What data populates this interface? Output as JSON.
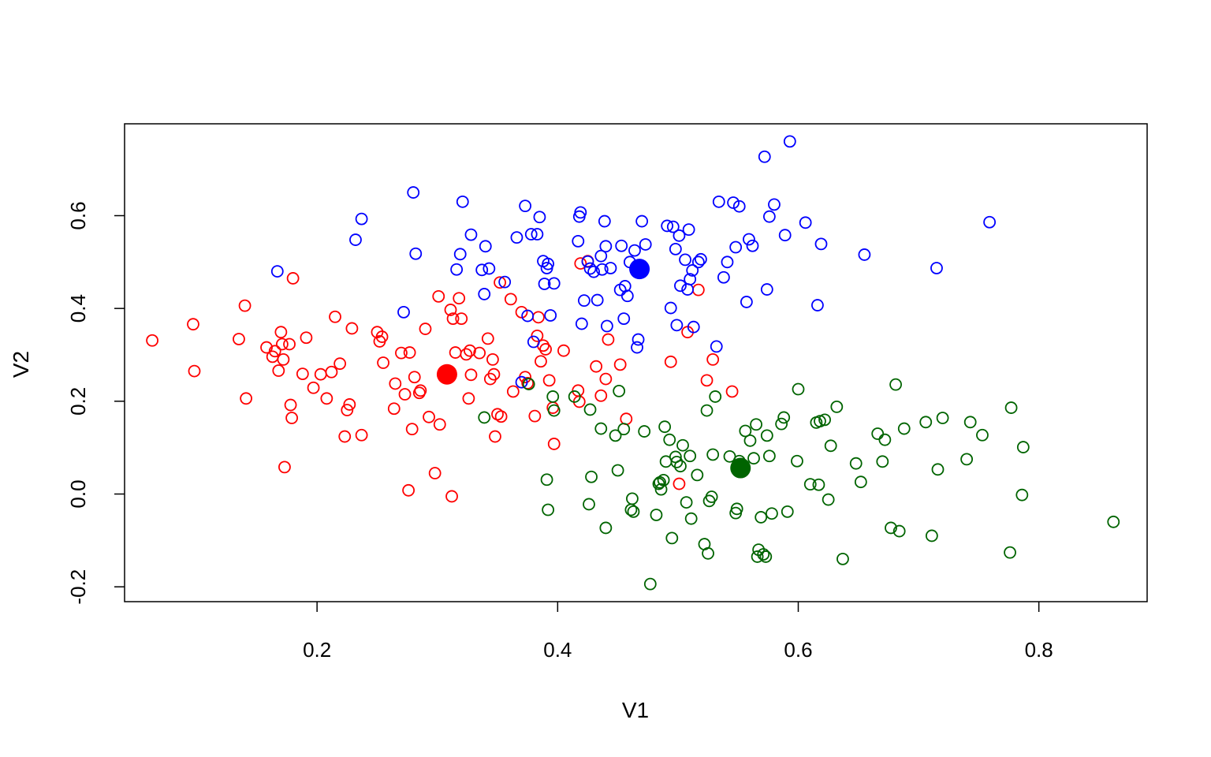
{
  "chart_data": {
    "type": "scatter",
    "title": "",
    "xlabel": "V1",
    "ylabel": "V2",
    "xlim": [
      0.04,
      0.89
    ],
    "ylim": [
      -0.232,
      0.798
    ],
    "x_ticks": [
      0.2,
      0.4,
      0.6,
      0.8
    ],
    "x_tick_labels": [
      "0.2",
      "0.4",
      "0.6",
      "0.8"
    ],
    "y_ticks": [
      -0.2,
      0.0,
      0.2,
      0.4,
      0.6
    ],
    "y_tick_labels": [
      "-0.2",
      "0.0",
      "0.2",
      "0.4",
      "0.6"
    ],
    "grid": false,
    "legend": "none",
    "series": [
      {
        "color": "#ff0000",
        "centroid": [
          0.308,
          0.258
        ],
        "x": [
          0.063,
          0.097,
          0.098,
          0.135,
          0.14,
          0.141,
          0.158,
          0.163,
          0.165,
          0.168,
          0.17,
          0.171,
          0.172,
          0.173,
          0.177,
          0.178,
          0.179,
          0.18,
          0.188,
          0.191,
          0.197,
          0.203,
          0.208,
          0.212,
          0.215,
          0.219,
          0.223,
          0.225,
          0.227,
          0.229,
          0.237,
          0.25,
          0.252,
          0.254,
          0.255,
          0.264,
          0.265,
          0.27,
          0.273,
          0.276,
          0.277,
          0.279,
          0.281,
          0.285,
          0.286,
          0.29,
          0.293,
          0.298,
          0.301,
          0.302,
          0.311,
          0.312,
          0.313,
          0.315,
          0.318,
          0.32,
          0.324,
          0.326,
          0.327,
          0.328,
          0.335,
          0.342,
          0.344,
          0.346,
          0.347,
          0.348,
          0.35,
          0.352,
          0.353,
          0.361,
          0.363,
          0.37,
          0.373,
          0.375,
          0.381,
          0.383,
          0.384,
          0.386,
          0.388,
          0.39,
          0.393,
          0.396,
          0.397,
          0.405,
          0.417,
          0.418,
          0.419,
          0.425,
          0.432,
          0.436,
          0.44,
          0.442,
          0.452,
          0.457,
          0.494,
          0.501,
          0.508,
          0.517,
          0.524,
          0.529,
          0.545
        ],
        "y": [
          0.331,
          0.366,
          0.265,
          0.334,
          0.406,
          0.206,
          0.316,
          0.296,
          0.308,
          0.266,
          0.349,
          0.323,
          0.29,
          0.058,
          0.323,
          0.192,
          0.164,
          0.465,
          0.259,
          0.337,
          0.229,
          0.258,
          0.206,
          0.263,
          0.382,
          0.281,
          0.124,
          0.181,
          0.193,
          0.357,
          0.127,
          0.349,
          0.329,
          0.339,
          0.283,
          0.184,
          0.238,
          0.304,
          0.215,
          0.008,
          0.305,
          0.14,
          0.252,
          0.218,
          0.223,
          0.356,
          0.166,
          0.045,
          0.426,
          0.15,
          0.397,
          -0.005,
          0.378,
          0.305,
          0.422,
          0.378,
          0.301,
          0.206,
          0.309,
          0.257,
          0.304,
          0.335,
          0.248,
          0.29,
          0.258,
          0.124,
          0.172,
          0.456,
          0.167,
          0.42,
          0.221,
          0.392,
          0.252,
          0.239,
          0.168,
          0.341,
          0.381,
          0.286,
          0.32,
          0.312,
          0.245,
          0.186,
          0.108,
          0.309,
          0.223,
          0.199,
          0.497,
          0.502,
          0.275,
          0.212,
          0.248,
          0.333,
          0.279,
          0.162,
          0.285,
          0.022,
          0.349,
          0.44,
          0.245,
          0.29,
          0.221
        ]
      },
      {
        "color": "#0000ff",
        "centroid": [
          0.468,
          0.485
        ],
        "x": [
          0.167,
          0.232,
          0.237,
          0.272,
          0.28,
          0.282,
          0.316,
          0.319,
          0.321,
          0.328,
          0.337,
          0.339,
          0.34,
          0.343,
          0.356,
          0.366,
          0.37,
          0.373,
          0.375,
          0.378,
          0.38,
          0.383,
          0.385,
          0.388,
          0.389,
          0.391,
          0.392,
          0.394,
          0.397,
          0.417,
          0.418,
          0.419,
          0.42,
          0.422,
          0.425,
          0.427,
          0.43,
          0.433,
          0.436,
          0.437,
          0.439,
          0.44,
          0.441,
          0.444,
          0.452,
          0.453,
          0.455,
          0.456,
          0.458,
          0.46,
          0.464,
          0.466,
          0.467,
          0.47,
          0.473,
          0.491,
          0.494,
          0.496,
          0.498,
          0.499,
          0.501,
          0.502,
          0.506,
          0.508,
          0.509,
          0.51,
          0.512,
          0.513,
          0.517,
          0.519,
          0.532,
          0.534,
          0.538,
          0.541,
          0.546,
          0.548,
          0.551,
          0.557,
          0.559,
          0.562,
          0.572,
          0.574,
          0.576,
          0.58,
          0.589,
          0.593,
          0.606,
          0.616,
          0.619,
          0.655,
          0.715,
          0.759
        ],
        "y": [
          0.48,
          0.548,
          0.593,
          0.392,
          0.65,
          0.518,
          0.484,
          0.517,
          0.63,
          0.559,
          0.483,
          0.431,
          0.534,
          0.486,
          0.457,
          0.553,
          0.241,
          0.621,
          0.384,
          0.56,
          0.328,
          0.56,
          0.597,
          0.502,
          0.453,
          0.487,
          0.496,
          0.385,
          0.454,
          0.545,
          0.598,
          0.607,
          0.367,
          0.417,
          0.501,
          0.486,
          0.479,
          0.418,
          0.513,
          0.484,
          0.588,
          0.534,
          0.362,
          0.487,
          0.44,
          0.535,
          0.378,
          0.448,
          0.427,
          0.5,
          0.525,
          0.316,
          0.333,
          0.588,
          0.538,
          0.578,
          0.401,
          0.576,
          0.528,
          0.364,
          0.557,
          0.449,
          0.505,
          0.441,
          0.57,
          0.463,
          0.482,
          0.36,
          0.5,
          0.506,
          0.318,
          0.63,
          0.467,
          0.5,
          0.628,
          0.532,
          0.62,
          0.414,
          0.549,
          0.535,
          0.727,
          0.441,
          0.598,
          0.624,
          0.558,
          0.76,
          0.585,
          0.407,
          0.539,
          0.516,
          0.487,
          0.586
        ]
      },
      {
        "color": "#006400",
        "centroid": [
          0.552,
          0.056
        ],
        "x": [
          0.339,
          0.376,
          0.391,
          0.392,
          0.396,
          0.397,
          0.414,
          0.426,
          0.427,
          0.428,
          0.436,
          0.44,
          0.448,
          0.45,
          0.451,
          0.455,
          0.461,
          0.462,
          0.463,
          0.472,
          0.477,
          0.482,
          0.484,
          0.485,
          0.486,
          0.488,
          0.489,
          0.49,
          0.493,
          0.495,
          0.498,
          0.499,
          0.502,
          0.504,
          0.507,
          0.51,
          0.511,
          0.516,
          0.522,
          0.524,
          0.525,
          0.526,
          0.528,
          0.529,
          0.531,
          0.543,
          0.548,
          0.549,
          0.551,
          0.556,
          0.56,
          0.563,
          0.565,
          0.566,
          0.567,
          0.569,
          0.571,
          0.573,
          0.574,
          0.576,
          0.578,
          0.586,
          0.588,
          0.591,
          0.599,
          0.6,
          0.61,
          0.615,
          0.617,
          0.618,
          0.622,
          0.625,
          0.627,
          0.632,
          0.637,
          0.648,
          0.652,
          0.666,
          0.67,
          0.672,
          0.677,
          0.681,
          0.684,
          0.688,
          0.706,
          0.711,
          0.716,
          0.72,
          0.74,
          0.743,
          0.753,
          0.776,
          0.777,
          0.786,
          0.787,
          0.862
        ],
        "y": [
          0.165,
          0.237,
          0.031,
          -0.034,
          0.21,
          0.18,
          0.21,
          -0.022,
          0.182,
          0.037,
          0.141,
          -0.073,
          0.126,
          0.051,
          0.222,
          0.14,
          -0.034,
          -0.01,
          -0.038,
          0.135,
          -0.194,
          -0.045,
          0.022,
          0.025,
          0.01,
          0.03,
          0.145,
          0.07,
          0.117,
          -0.095,
          0.08,
          0.069,
          0.06,
          0.105,
          -0.018,
          0.082,
          -0.053,
          0.041,
          -0.108,
          0.18,
          -0.128,
          -0.015,
          -0.006,
          0.085,
          0.21,
          0.081,
          -0.041,
          -0.032,
          0.071,
          0.136,
          0.115,
          0.077,
          0.15,
          -0.135,
          -0.12,
          -0.05,
          -0.13,
          -0.135,
          0.126,
          0.082,
          -0.042,
          0.151,
          0.165,
          -0.038,
          0.071,
          0.226,
          0.021,
          0.154,
          0.02,
          0.157,
          0.16,
          -0.012,
          0.104,
          0.188,
          -0.14,
          0.066,
          0.026,
          0.13,
          0.07,
          0.117,
          -0.073,
          0.236,
          -0.08,
          0.141,
          0.155,
          -0.09,
          0.053,
          0.164,
          0.075,
          0.155,
          0.127,
          -0.126,
          0.186,
          -0.002,
          0.101,
          -0.06
        ]
      }
    ]
  }
}
